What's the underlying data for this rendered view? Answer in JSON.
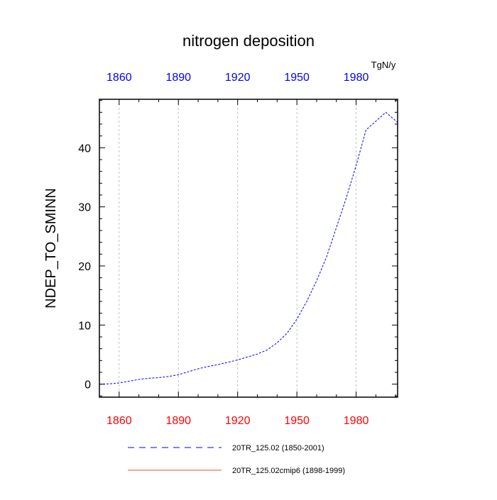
{
  "chart_data": {
    "type": "line",
    "title": "nitrogen deposition",
    "units": "TgN/y",
    "ylabel": "NDEP_TO_SMINN",
    "xlabel": "",
    "xlim": [
      1850,
      2001
    ],
    "ylim": [
      -2.2,
      48.2
    ],
    "x_ticks": [
      "1860",
      "1890",
      "1920",
      "1950",
      "1980"
    ],
    "x_tick_values": [
      1860,
      1890,
      1920,
      1950,
      1980
    ],
    "y_ticks": [
      "0",
      "10",
      "20",
      "30",
      "40"
    ],
    "y_tick_values": [
      0,
      10,
      20,
      30,
      40
    ],
    "grid": "vertical dashed at x ticks",
    "colors": {
      "top_axis_labels": "#0000ff",
      "bottom_axis_labels": "#ff0000",
      "series_1": "#0000ff",
      "series_2": "#ff0000",
      "grid": "#b4b4b4"
    },
    "series": [
      {
        "name": "20TR_125.02 (1850-2001)",
        "style": "dashed",
        "color": "#0000ff",
        "x": [
          1850,
          1855,
          1860,
          1865,
          1870,
          1875,
          1880,
          1885,
          1890,
          1895,
          1900,
          1905,
          1910,
          1915,
          1920,
          1925,
          1930,
          1935,
          1940,
          1945,
          1950,
          1955,
          1960,
          1965,
          1970,
          1975,
          1980,
          1985,
          1990,
          1995,
          2001
        ],
        "values": [
          0.0,
          0.05,
          0.2,
          0.5,
          0.8,
          1.0,
          1.1,
          1.3,
          1.6,
          2.1,
          2.6,
          3.0,
          3.3,
          3.7,
          4.1,
          4.6,
          5.1,
          5.8,
          7.0,
          8.6,
          11.0,
          14.0,
          17.5,
          21.5,
          26.5,
          31.5,
          37.0,
          43.0,
          44.5,
          46.0,
          44.3
        ]
      },
      {
        "name": "20TR_125.02cmip6 (1898-1999)",
        "style": "solid",
        "color": "#ff0000",
        "x": [],
        "values": []
      }
    ],
    "legend_placement": "bottom"
  }
}
